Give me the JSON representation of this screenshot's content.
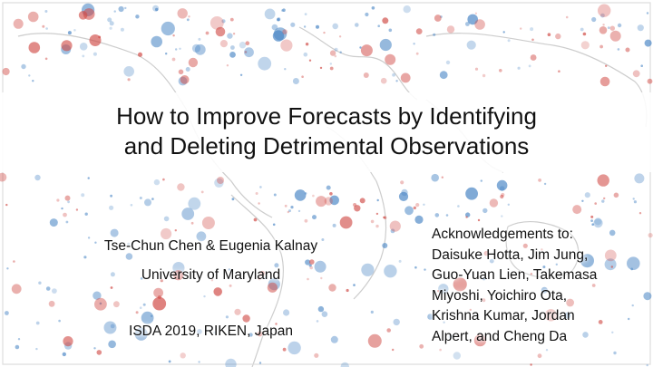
{
  "slide": {
    "title_lines": [
      "How to Improve Forecasts by Identifying",
      "and Deleting Detrimental Observations"
    ],
    "authors": "Tse-Chun Chen & Eugenia Kalnay",
    "affiliation": "University of Maryland",
    "conference": "ISDA 2019, RIKEN, Japan",
    "acknowledgements_lines": [
      "Acknowledgements to:",
      "Daisuke Hotta, Jim Jung,",
      "Guo-Yuan Lien, Takemasa",
      "Miyoshi, Yoichiro Ota,",
      "Krishna Kumar, Jordan",
      "Alpert, and Cheng Da"
    ]
  },
  "colors": {
    "beneficial_blue": "#4a86c5",
    "detrimental_red": "#d04a45",
    "coastline_gray": "#b8b8b8",
    "text": "#111111"
  }
}
